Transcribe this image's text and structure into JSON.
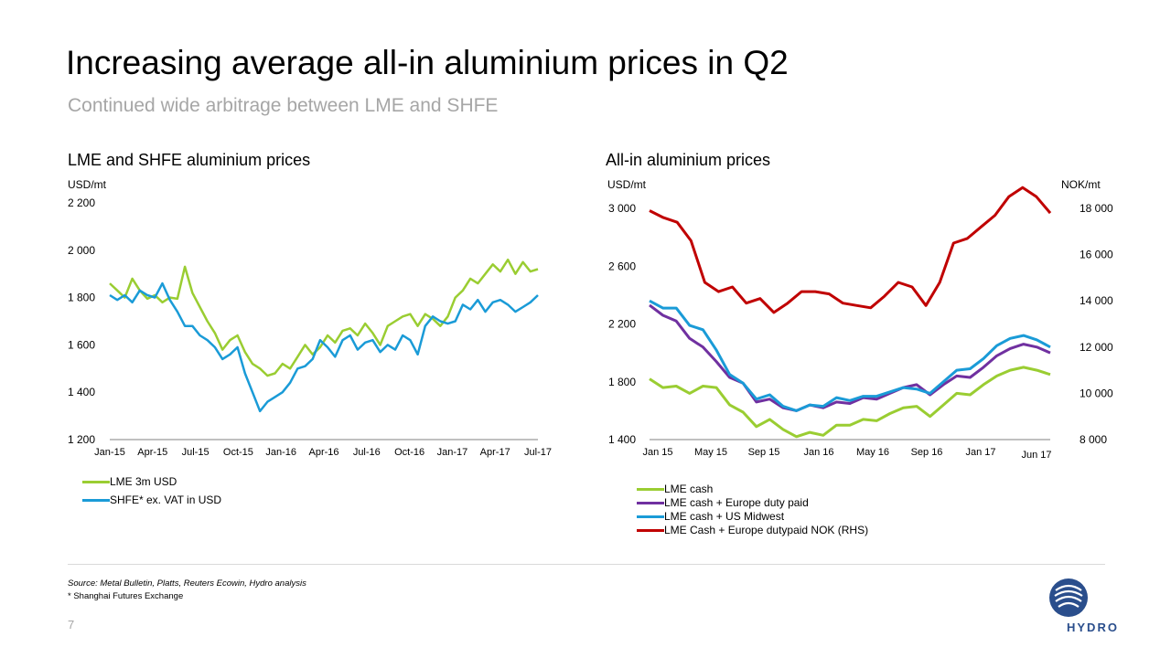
{
  "header": {
    "title": "Increasing average all-in aluminium prices in Q2",
    "subtitle": "Continued wide arbitrage between LME and SHFE"
  },
  "footer": {
    "source": "Source: Metal Bulletin, Platts, Reuters Ecowin, Hydro analysis",
    "footnote": "* Shanghai Futures Exchange",
    "page_number": "7",
    "logo_text": "HYDRO"
  },
  "colors": {
    "lme": "#9acd32",
    "shfe": "#1a9bd7",
    "europe": "#7030a0",
    "us": "#1a9bd7",
    "nok": "#c00000",
    "axis": "#808080"
  },
  "chart_data": [
    {
      "type": "line",
      "title": "LME and SHFE aluminium prices",
      "ylabel": "USD/mt",
      "ylim": [
        1200,
        2200
      ],
      "yticks": [
        "1 200",
        "1 400",
        "1 600",
        "1 800",
        "2 000",
        "2 200"
      ],
      "ytick_values": [
        1200,
        1400,
        1600,
        1800,
        2000,
        2200
      ],
      "xticks": [
        "Jan-15",
        "Apr-15",
        "Jul-15",
        "Oct-15",
        "Jan-16",
        "Apr-16",
        "Jul-16",
        "Oct-16",
        "Jan-17",
        "Apr-17",
        "Jul-17"
      ],
      "series": [
        {
          "name": "LME 3m USD",
          "color": "#9acd32",
          "values": [
            1860,
            1830,
            1800,
            1880,
            1830,
            1795,
            1810,
            1780,
            1800,
            1795,
            1930,
            1820,
            1760,
            1700,
            1650,
            1580,
            1620,
            1640,
            1570,
            1520,
            1500,
            1470,
            1480,
            1520,
            1500,
            1550,
            1600,
            1560,
            1590,
            1640,
            1610,
            1660,
            1670,
            1640,
            1690,
            1650,
            1600,
            1680,
            1700,
            1720,
            1730,
            1680,
            1730,
            1710,
            1680,
            1720,
            1800,
            1830,
            1880,
            1860,
            1900,
            1940,
            1910,
            1960,
            1900,
            1950,
            1910,
            1920
          ]
        },
        {
          "name": "SHFE* ex. VAT in USD",
          "color": "#1a9bd7",
          "values": [
            1810,
            1790,
            1810,
            1780,
            1830,
            1810,
            1800,
            1860,
            1790,
            1740,
            1680,
            1680,
            1640,
            1620,
            1590,
            1540,
            1560,
            1590,
            1480,
            1400,
            1320,
            1360,
            1380,
            1400,
            1440,
            1500,
            1510,
            1540,
            1620,
            1590,
            1550,
            1620,
            1640,
            1580,
            1610,
            1620,
            1570,
            1600,
            1580,
            1640,
            1620,
            1560,
            1680,
            1720,
            1700,
            1690,
            1700,
            1770,
            1750,
            1790,
            1740,
            1780,
            1790,
            1770,
            1740,
            1760,
            1780,
            1810
          ]
        }
      ]
    },
    {
      "type": "line",
      "title": "All-in aluminium prices",
      "ylabel": "USD/mt",
      "ylabel_right": "NOK/mt",
      "ylim": [
        1400,
        3000
      ],
      "ylim_right": [
        8000,
        18000
      ],
      "yticks": [
        "1 400",
        "1 800",
        "2 200",
        "2 600",
        "3 000"
      ],
      "ytick_values": [
        1400,
        1800,
        2200,
        2600,
        3000
      ],
      "yticks_right": [
        "8 000",
        "10 000",
        "12 000",
        "14 000",
        "16 000",
        "18 000"
      ],
      "ytick_right_values": [
        8000,
        10000,
        12000,
        14000,
        16000,
        18000
      ],
      "xticks": [
        "Jan 15",
        "May 15",
        "Sep 15",
        "Jan 16",
        "May 16",
        "Sep 16",
        "Jan 17",
        "Jun 17"
      ],
      "series": [
        {
          "name": "LME cash",
          "color": "#9acd32",
          "axis": "left",
          "values": [
            1820,
            1760,
            1770,
            1720,
            1770,
            1760,
            1640,
            1590,
            1490,
            1540,
            1470,
            1420,
            1450,
            1430,
            1500,
            1500,
            1540,
            1530,
            1580,
            1620,
            1630,
            1560,
            1640,
            1720,
            1710,
            1780,
            1840,
            1880,
            1900,
            1880,
            1850
          ]
        },
        {
          "name": "LME cash + Europe duty paid",
          "color": "#7030a0",
          "axis": "left",
          "values": [
            2330,
            2260,
            2220,
            2100,
            2040,
            1940,
            1830,
            1790,
            1660,
            1680,
            1620,
            1600,
            1640,
            1620,
            1660,
            1650,
            1690,
            1680,
            1720,
            1760,
            1780,
            1710,
            1780,
            1840,
            1830,
            1900,
            1980,
            2030,
            2060,
            2040,
            2000
          ]
        },
        {
          "name": "LME cash + US Midwest",
          "color": "#1a9bd7",
          "axis": "left",
          "values": [
            2360,
            2310,
            2310,
            2190,
            2160,
            2020,
            1850,
            1790,
            1680,
            1710,
            1630,
            1600,
            1640,
            1630,
            1690,
            1670,
            1700,
            1700,
            1730,
            1760,
            1750,
            1720,
            1800,
            1880,
            1890,
            1960,
            2050,
            2100,
            2120,
            2090,
            2040
          ]
        },
        {
          "name": "LME Cash + Europe dutypaid NOK (RHS)",
          "color": "#c00000",
          "axis": "right",
          "values": [
            17900,
            17600,
            17400,
            16600,
            14800,
            14400,
            14600,
            13900,
            14100,
            13500,
            13900,
            14400,
            14400,
            14300,
            13900,
            13800,
            13700,
            14200,
            14800,
            14600,
            13800,
            14800,
            16500,
            16700,
            17200,
            17700,
            18500,
            18900,
            18500,
            17800
          ]
        }
      ]
    }
  ]
}
